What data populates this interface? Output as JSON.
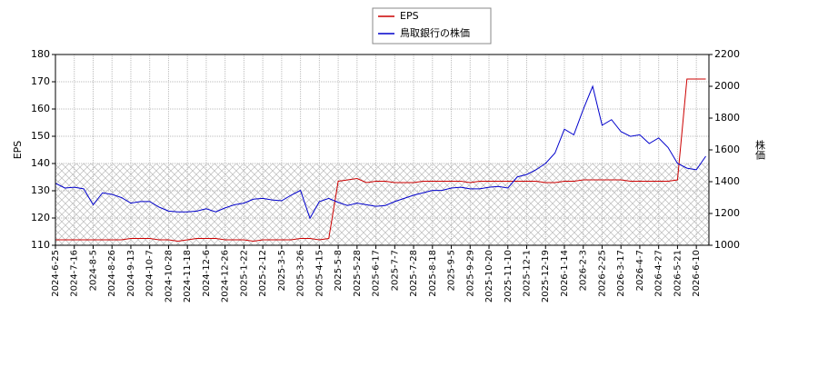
{
  "chart_data": {
    "type": "line",
    "categories": [
      "2024-6-25",
      null,
      "2024-7-16",
      null,
      "2024-8-5",
      null,
      "2024-8-26",
      null,
      "2024-9-13",
      null,
      "2024-10-7",
      null,
      "2024-10-28",
      null,
      "2024-11-18",
      null,
      "2024-12-6",
      null,
      "2024-12-26",
      null,
      "2025-1-22",
      null,
      "2025-2-12",
      null,
      "2025-3-5",
      null,
      "2025-3-26",
      null,
      "2025-4-15",
      null,
      "2025-5-8",
      null,
      "2025-5-28",
      null,
      "2025-6-17",
      null,
      "2025-7-7",
      null,
      "2025-7-28",
      null,
      "2025-8-18",
      null,
      "2025-9-5",
      null,
      "2025-9-29",
      null,
      "2025-10-20",
      null,
      "2025-11-10",
      null,
      "2025-12-1",
      null,
      "2025-12-19",
      null,
      "2026-1-14",
      null,
      "2026-2-3",
      null,
      "2026-2-25",
      null,
      "2026-3-17",
      null,
      "2026-4-7",
      null,
      "2026-4-27",
      null,
      "2026-5-21",
      null,
      "2026-6-10",
      null
    ],
    "series": [
      {
        "name": "EPS",
        "color": "#cc0000",
        "axis": "y",
        "values": [
          112,
          112,
          112,
          112,
          112,
          112,
          112,
          112,
          112.5,
          112.5,
          112.5,
          112,
          112,
          111.5,
          112,
          112.5,
          112.5,
          112.5,
          112,
          112,
          112,
          111.5,
          112,
          112,
          112,
          112,
          112.5,
          112.5,
          112,
          112.5,
          133.5,
          134,
          134.5,
          133,
          133.5,
          133.5,
          133,
          133,
          133,
          133.5,
          133.5,
          133.5,
          133.5,
          133.5,
          133,
          133.5,
          133.5,
          133.5,
          133.5,
          133.5,
          133.5,
          133.5,
          133,
          133,
          133.5,
          133.5,
          134,
          134,
          134,
          134,
          134,
          133.5,
          133.5,
          133.5,
          133.5,
          133.5,
          134,
          171,
          171,
          171
        ]
      },
      {
        "name": "鳥取銀行の株価",
        "color": "#0000cc",
        "axis": "y2",
        "values": [
          1390,
          1360,
          1365,
          1355,
          1255,
          1330,
          1320,
          1300,
          1265,
          1275,
          1275,
          1240,
          1215,
          1210,
          1210,
          1215,
          1230,
          1210,
          1235,
          1255,
          1265,
          1290,
          1295,
          1285,
          1280,
          1315,
          1345,
          1170,
          1275,
          1295,
          1270,
          1250,
          1265,
          1255,
          1245,
          1250,
          1275,
          1295,
          1315,
          1330,
          1345,
          1345,
          1360,
          1365,
          1355,
          1355,
          1365,
          1370,
          1360,
          1430,
          1445,
          1475,
          1515,
          1580,
          1730,
          1695,
          1855,
          2000,
          1755,
          1790,
          1715,
          1685,
          1695,
          1640,
          1675,
          1615,
          1515,
          1485,
          1475,
          1560
        ]
      }
    ],
    "y_label": "EPS",
    "y2_label": "株価",
    "ylim": [
      110,
      180
    ],
    "yticks": [
      110,
      120,
      130,
      140,
      150,
      160,
      170,
      180
    ],
    "y2lim": [
      1000,
      2200
    ],
    "y2ticks": [
      1000,
      1200,
      1400,
      1600,
      1800,
      2000,
      2200
    ],
    "grid": true
  }
}
